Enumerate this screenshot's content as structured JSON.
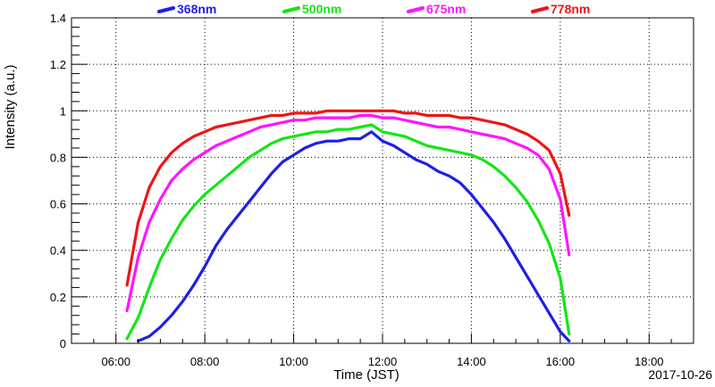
{
  "chart_data": {
    "type": "line",
    "title": "",
    "xlabel": "Time (JST)",
    "ylabel": "Intensity (a.u.)",
    "date_label": "2017-10-26",
    "x_ticks": [
      "06:00",
      "08:00",
      "10:00",
      "12:00",
      "14:00",
      "16:00",
      "18:00"
    ],
    "x_tick_hours": [
      6,
      8,
      10,
      12,
      14,
      16,
      18
    ],
    "xlim_hours": [
      5.0,
      19.0
    ],
    "y_ticks": [
      "0",
      "0.2",
      "0.4",
      "0.6",
      "0.8",
      "1",
      "1.2",
      "1.4"
    ],
    "ylim": [
      0,
      1.4
    ],
    "grid": true,
    "legend_position": "top",
    "series": [
      {
        "name": "368nm",
        "color": "#1f1fe6",
        "x_hours": [
          6.5,
          6.75,
          7.0,
          7.25,
          7.5,
          7.75,
          8.0,
          8.25,
          8.5,
          8.75,
          9.0,
          9.25,
          9.5,
          9.75,
          10.0,
          10.25,
          10.5,
          10.75,
          11.0,
          11.25,
          11.5,
          11.75,
          12.0,
          12.25,
          12.5,
          12.75,
          13.0,
          13.25,
          13.5,
          13.75,
          14.0,
          14.25,
          14.5,
          14.75,
          15.0,
          15.25,
          15.5,
          15.75,
          16.0,
          16.2
        ],
        "values": [
          0.01,
          0.03,
          0.07,
          0.12,
          0.18,
          0.25,
          0.33,
          0.42,
          0.49,
          0.55,
          0.61,
          0.67,
          0.73,
          0.78,
          0.81,
          0.84,
          0.86,
          0.87,
          0.87,
          0.88,
          0.88,
          0.91,
          0.87,
          0.85,
          0.82,
          0.79,
          0.77,
          0.74,
          0.72,
          0.69,
          0.64,
          0.58,
          0.52,
          0.45,
          0.37,
          0.29,
          0.21,
          0.13,
          0.05,
          0.01
        ]
      },
      {
        "name": "500nm",
        "color": "#14e614",
        "x_hours": [
          6.25,
          6.5,
          6.75,
          7.0,
          7.25,
          7.5,
          7.75,
          8.0,
          8.25,
          8.5,
          8.75,
          9.0,
          9.25,
          9.5,
          9.75,
          10.0,
          10.25,
          10.5,
          10.75,
          11.0,
          11.25,
          11.5,
          11.75,
          12.0,
          12.25,
          12.5,
          12.75,
          13.0,
          13.25,
          13.5,
          13.75,
          14.0,
          14.25,
          14.5,
          14.75,
          15.0,
          15.25,
          15.5,
          15.75,
          16.0,
          16.2
        ],
        "values": [
          0.02,
          0.11,
          0.24,
          0.36,
          0.45,
          0.53,
          0.59,
          0.64,
          0.68,
          0.72,
          0.76,
          0.8,
          0.83,
          0.86,
          0.88,
          0.89,
          0.9,
          0.91,
          0.91,
          0.92,
          0.92,
          0.93,
          0.94,
          0.91,
          0.9,
          0.89,
          0.87,
          0.85,
          0.84,
          0.83,
          0.82,
          0.81,
          0.79,
          0.76,
          0.72,
          0.67,
          0.61,
          0.53,
          0.43,
          0.28,
          0.04
        ]
      },
      {
        "name": "675nm",
        "color": "#ff14ff",
        "x_hours": [
          6.25,
          6.5,
          6.75,
          7.0,
          7.25,
          7.5,
          7.75,
          8.0,
          8.25,
          8.5,
          8.75,
          9.0,
          9.25,
          9.5,
          9.75,
          10.0,
          10.25,
          10.5,
          10.75,
          11.0,
          11.25,
          11.5,
          11.75,
          12.0,
          12.25,
          12.5,
          12.75,
          13.0,
          13.25,
          13.5,
          13.75,
          14.0,
          14.25,
          14.5,
          14.75,
          15.0,
          15.25,
          15.5,
          15.75,
          16.0,
          16.2
        ],
        "values": [
          0.14,
          0.37,
          0.52,
          0.62,
          0.7,
          0.75,
          0.79,
          0.82,
          0.85,
          0.87,
          0.89,
          0.91,
          0.93,
          0.94,
          0.95,
          0.96,
          0.96,
          0.97,
          0.97,
          0.97,
          0.97,
          0.98,
          0.98,
          0.97,
          0.97,
          0.96,
          0.95,
          0.94,
          0.93,
          0.93,
          0.92,
          0.91,
          0.9,
          0.89,
          0.88,
          0.86,
          0.84,
          0.81,
          0.75,
          0.62,
          0.38
        ]
      },
      {
        "name": "778nm",
        "color": "#f01414",
        "x_hours": [
          6.25,
          6.5,
          6.75,
          7.0,
          7.25,
          7.5,
          7.75,
          8.0,
          8.25,
          8.5,
          8.75,
          9.0,
          9.25,
          9.5,
          9.75,
          10.0,
          10.25,
          10.5,
          10.75,
          11.0,
          11.25,
          11.5,
          11.75,
          12.0,
          12.25,
          12.5,
          12.75,
          13.0,
          13.25,
          13.5,
          13.75,
          14.0,
          14.25,
          14.5,
          14.75,
          15.0,
          15.25,
          15.5,
          15.75,
          16.0,
          16.2
        ],
        "values": [
          0.25,
          0.52,
          0.67,
          0.76,
          0.82,
          0.86,
          0.89,
          0.91,
          0.93,
          0.94,
          0.95,
          0.96,
          0.97,
          0.98,
          0.98,
          0.99,
          0.99,
          0.99,
          1.0,
          1.0,
          1.0,
          1.0,
          1.0,
          1.0,
          1.0,
          0.99,
          0.99,
          0.98,
          0.98,
          0.98,
          0.97,
          0.97,
          0.96,
          0.95,
          0.94,
          0.92,
          0.9,
          0.87,
          0.83,
          0.73,
          0.55
        ]
      }
    ]
  }
}
